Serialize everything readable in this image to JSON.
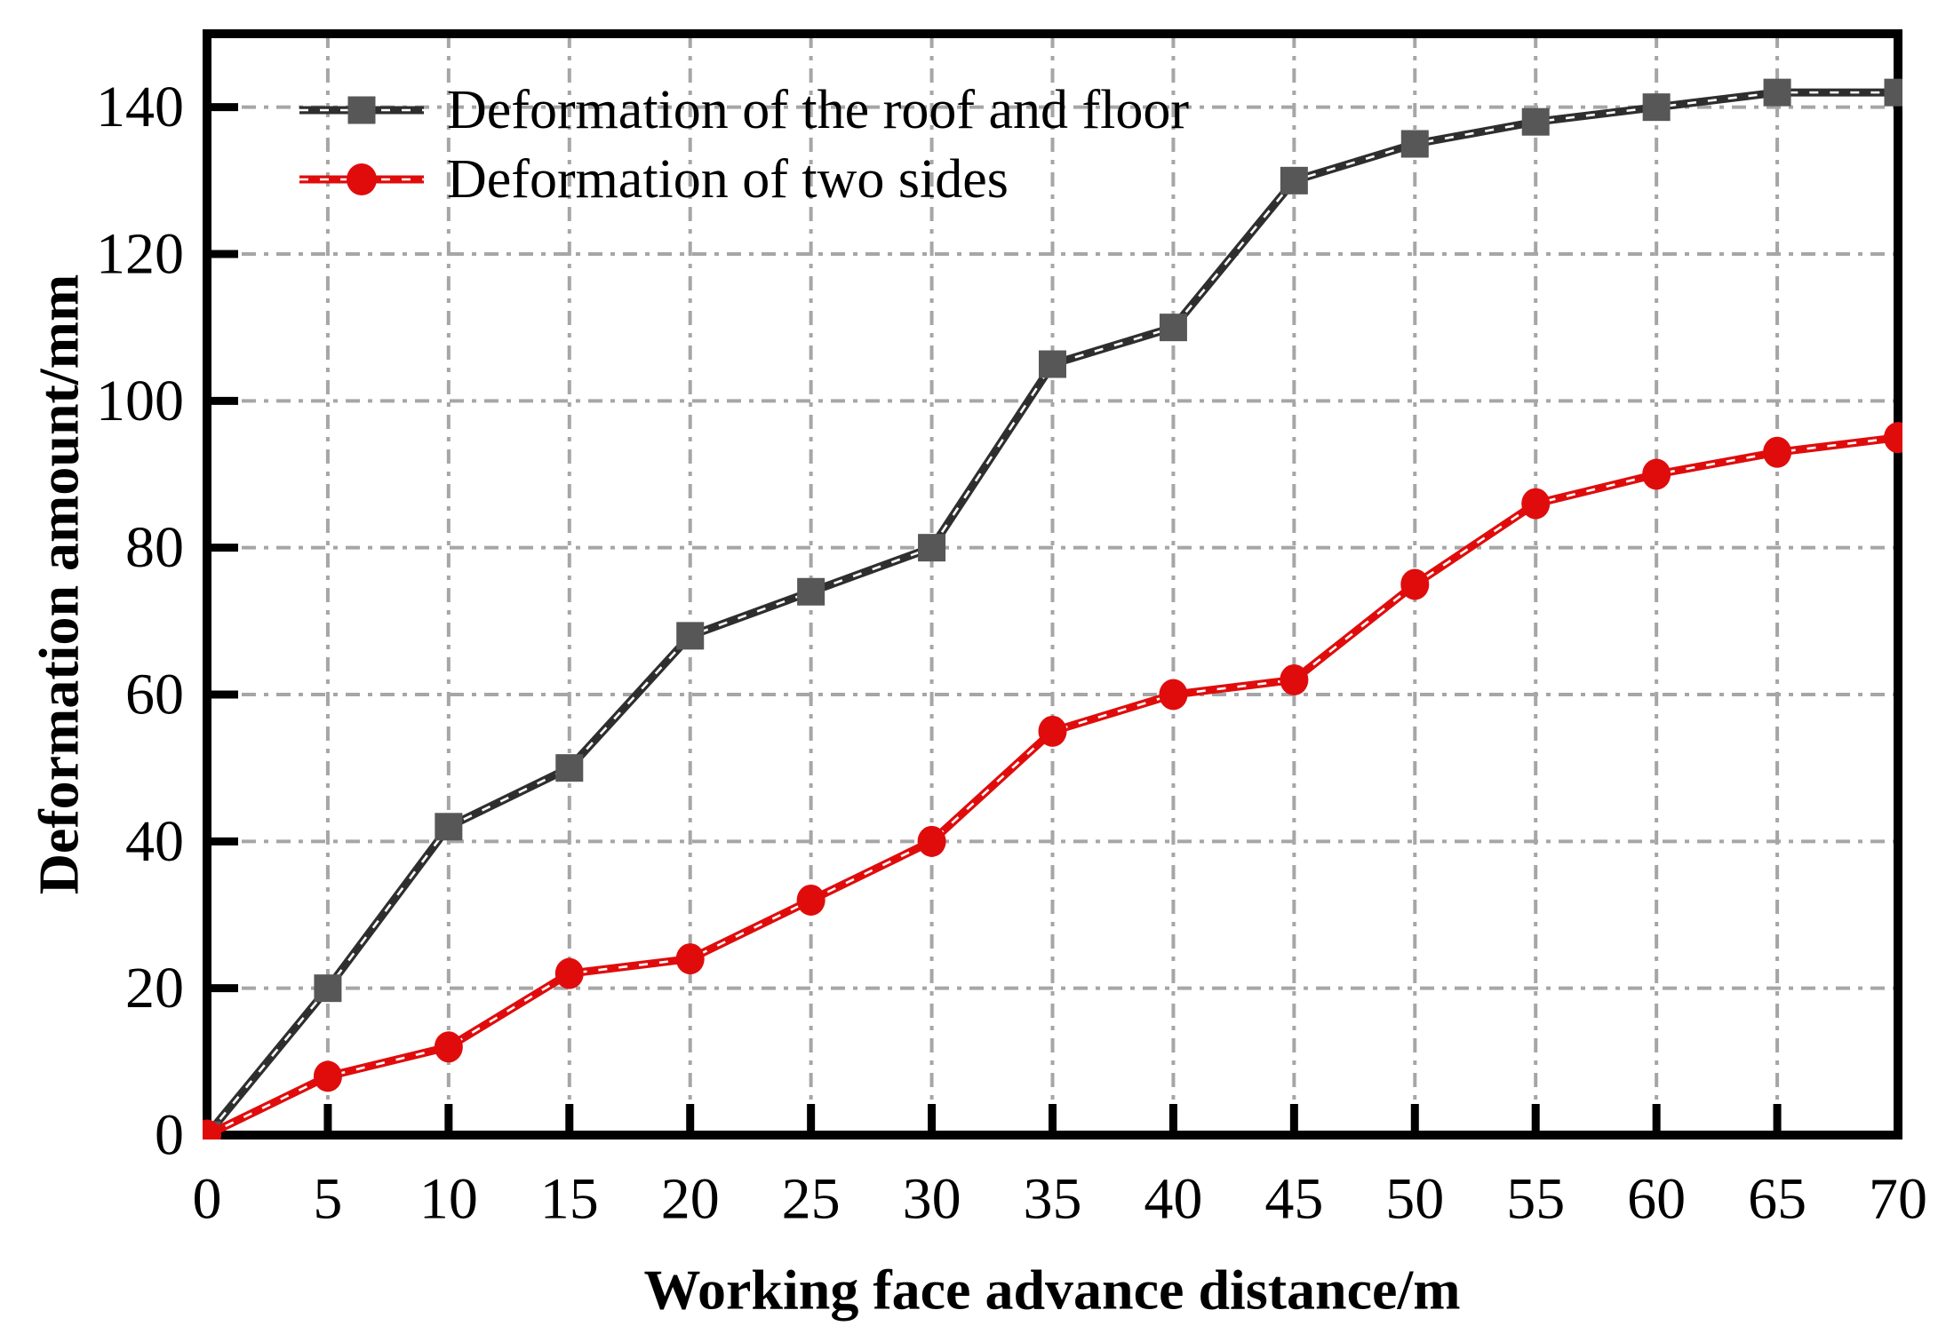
{
  "figure": {
    "background_color": "#ffffff",
    "text_color": "#000000",
    "grid_color": "#a6a6a6",
    "spine_color": "#000000"
  },
  "chart_data": {
    "type": "line",
    "title": "",
    "xlabel": "Working face advance distance/m",
    "ylabel": "Deformation amount/mm",
    "x": [
      0,
      5,
      10,
      15,
      20,
      25,
      30,
      35,
      40,
      45,
      50,
      55,
      60,
      65,
      70
    ],
    "series": [
      {
        "name": "Deformation of the roof and floor",
        "values": [
          0,
          20,
          42,
          50,
          68,
          74,
          80,
          105,
          110,
          130,
          135,
          138,
          140,
          142,
          142
        ],
        "line_color": "#2e2e2e",
        "marker": "square",
        "marker_color": "#575757"
      },
      {
        "name": "Deformation of two sides",
        "values": [
          0,
          8,
          12,
          22,
          24,
          32,
          40,
          55,
          60,
          62,
          75,
          86,
          90,
          93,
          95
        ],
        "line_color": "#e00c0c",
        "marker": "circle",
        "marker_color": "#e00c0c"
      }
    ],
    "xlim": [
      0,
      70
    ],
    "ylim": [
      0,
      150
    ],
    "x_ticks": [
      0,
      5,
      10,
      15,
      20,
      25,
      30,
      35,
      40,
      45,
      50,
      55,
      60,
      65,
      70
    ],
    "y_ticks": [
      0,
      20,
      40,
      60,
      80,
      100,
      120,
      140
    ],
    "grid": true,
    "grid_style": "dash-dot",
    "legend_position": "top-left",
    "line_overlay": "white-dashed"
  }
}
